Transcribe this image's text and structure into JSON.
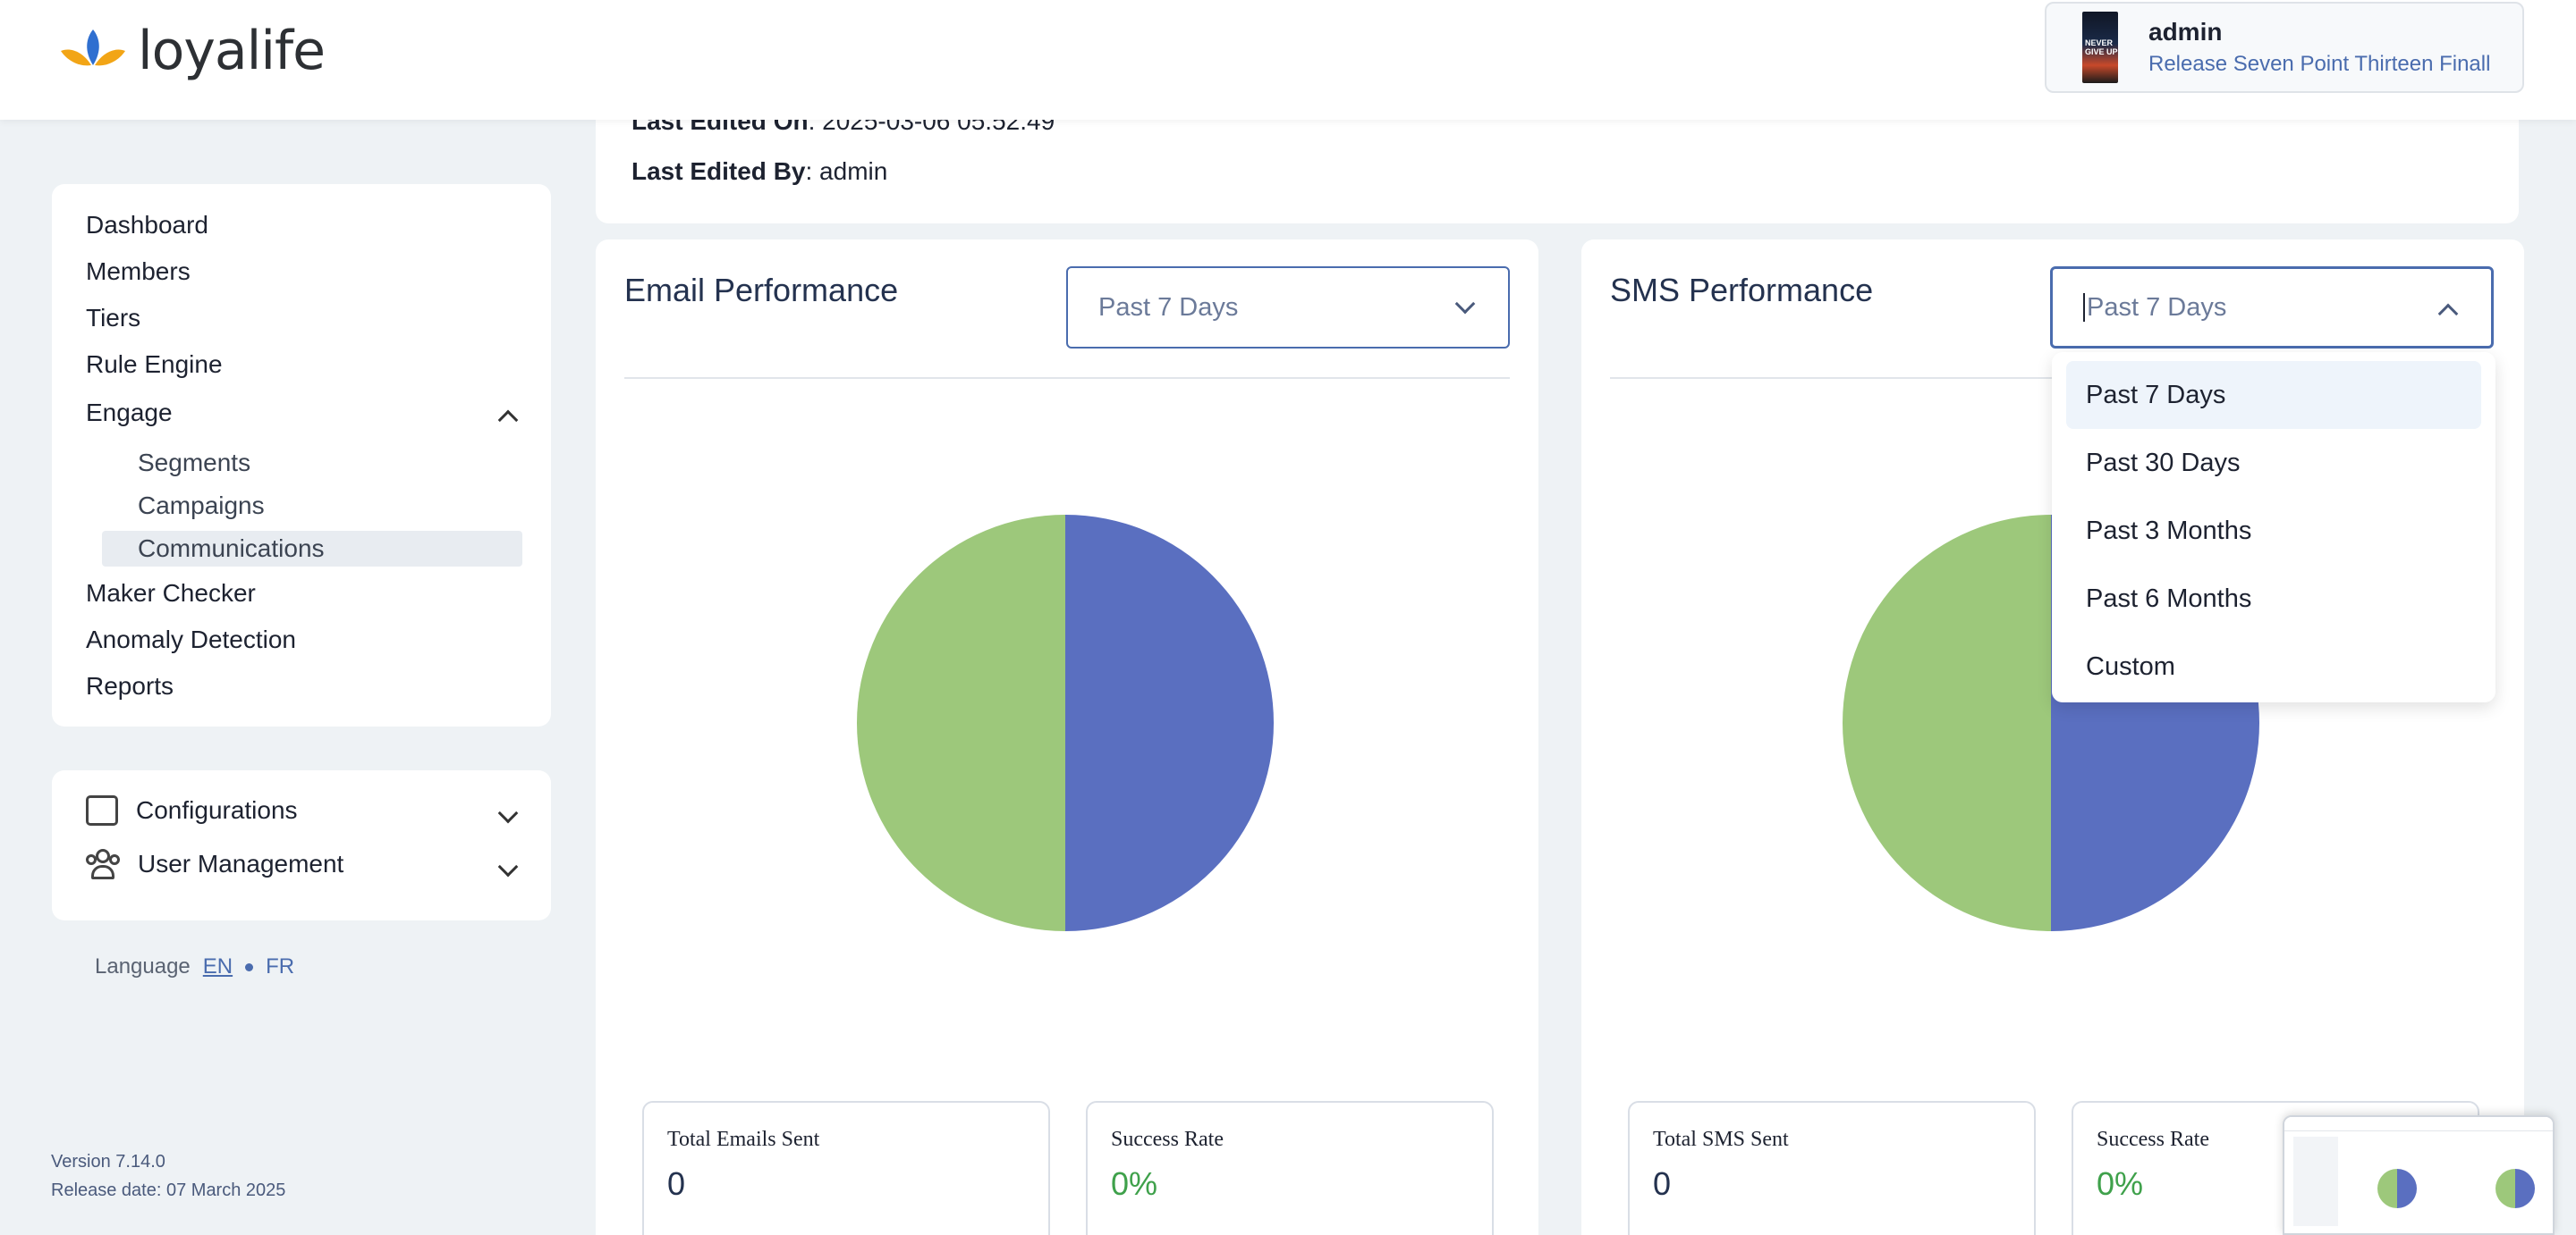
{
  "header": {
    "brand": "loyalife",
    "avatar_text": "NEVER GIVE UP",
    "user_name": "admin",
    "release": "Release Seven Point Thirteen Finall"
  },
  "sidebar": {
    "items": [
      {
        "label": "Dashboard"
      },
      {
        "label": "Members"
      },
      {
        "label": "Tiers"
      },
      {
        "label": "Rule Engine"
      },
      {
        "label": "Engage"
      },
      {
        "label": "Maker Checker"
      },
      {
        "label": "Anomaly Detection"
      },
      {
        "label": "Reports"
      }
    ],
    "engage_children": [
      {
        "label": "Segments"
      },
      {
        "label": "Campaigns"
      },
      {
        "label": "Communications"
      }
    ],
    "settings": [
      {
        "label": "Configurations",
        "icon": "configurations-icon"
      },
      {
        "label": "User Management",
        "icon": "user-management-icon"
      }
    ],
    "language": {
      "label": "Language",
      "en": "EN",
      "fr": "FR"
    },
    "version": "Version 7.14.0",
    "release_date": "Release date: 07 March 2025"
  },
  "info": {
    "last_edited_on_label": "Last Edited On",
    "last_edited_on_value": ": 2025-03-06 05.52.49",
    "last_edited_by_label": "Last Edited By",
    "last_edited_by_value": ": admin"
  },
  "email": {
    "title": "Email Performance",
    "period": "Past 7 Days",
    "stats": [
      {
        "label": "Total Emails Sent",
        "value": "0"
      },
      {
        "label": "Success Rate",
        "value": "0%"
      }
    ]
  },
  "sms": {
    "title": "SMS Performance",
    "period": "Past 7 Days",
    "stats": [
      {
        "label": "Total SMS Sent",
        "value": "0"
      },
      {
        "label": "Success Rate",
        "value": "0%"
      }
    ]
  },
  "dropdown": {
    "options": [
      "Past 7 Days",
      "Past 30 Days",
      "Past 3 Months",
      "Past 6 Months",
      "Custom"
    ],
    "selected": "Past 7 Days"
  },
  "colors": {
    "pie_green": "#9dc87b",
    "pie_blue": "#5a6fc0",
    "accent": "#4a6cae"
  }
}
